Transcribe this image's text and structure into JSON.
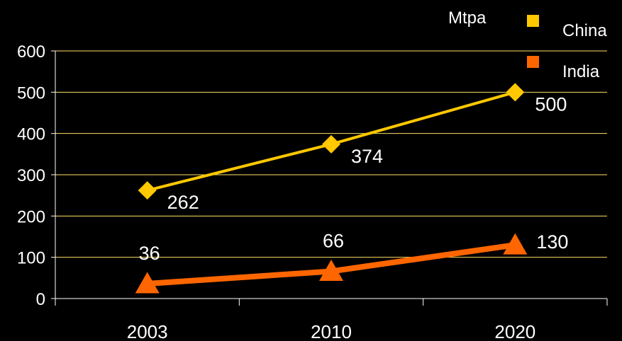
{
  "chart_data": {
    "type": "line",
    "categories": [
      "2003",
      "2010",
      "2020"
    ],
    "ylim": [
      0,
      600
    ],
    "yticks": [
      0,
      100,
      200,
      300,
      400,
      500,
      600
    ],
    "unit_label": "Mtpa",
    "grid": true,
    "legend_position": "top-right",
    "series": [
      {
        "name": "China",
        "values": [
          262,
          374,
          500
        ],
        "color": "#FFC800",
        "marker": "diamond"
      },
      {
        "name": "India",
        "values": [
          36,
          66,
          130
        ],
        "color": "#FF6600",
        "marker": "triangle"
      }
    ]
  }
}
